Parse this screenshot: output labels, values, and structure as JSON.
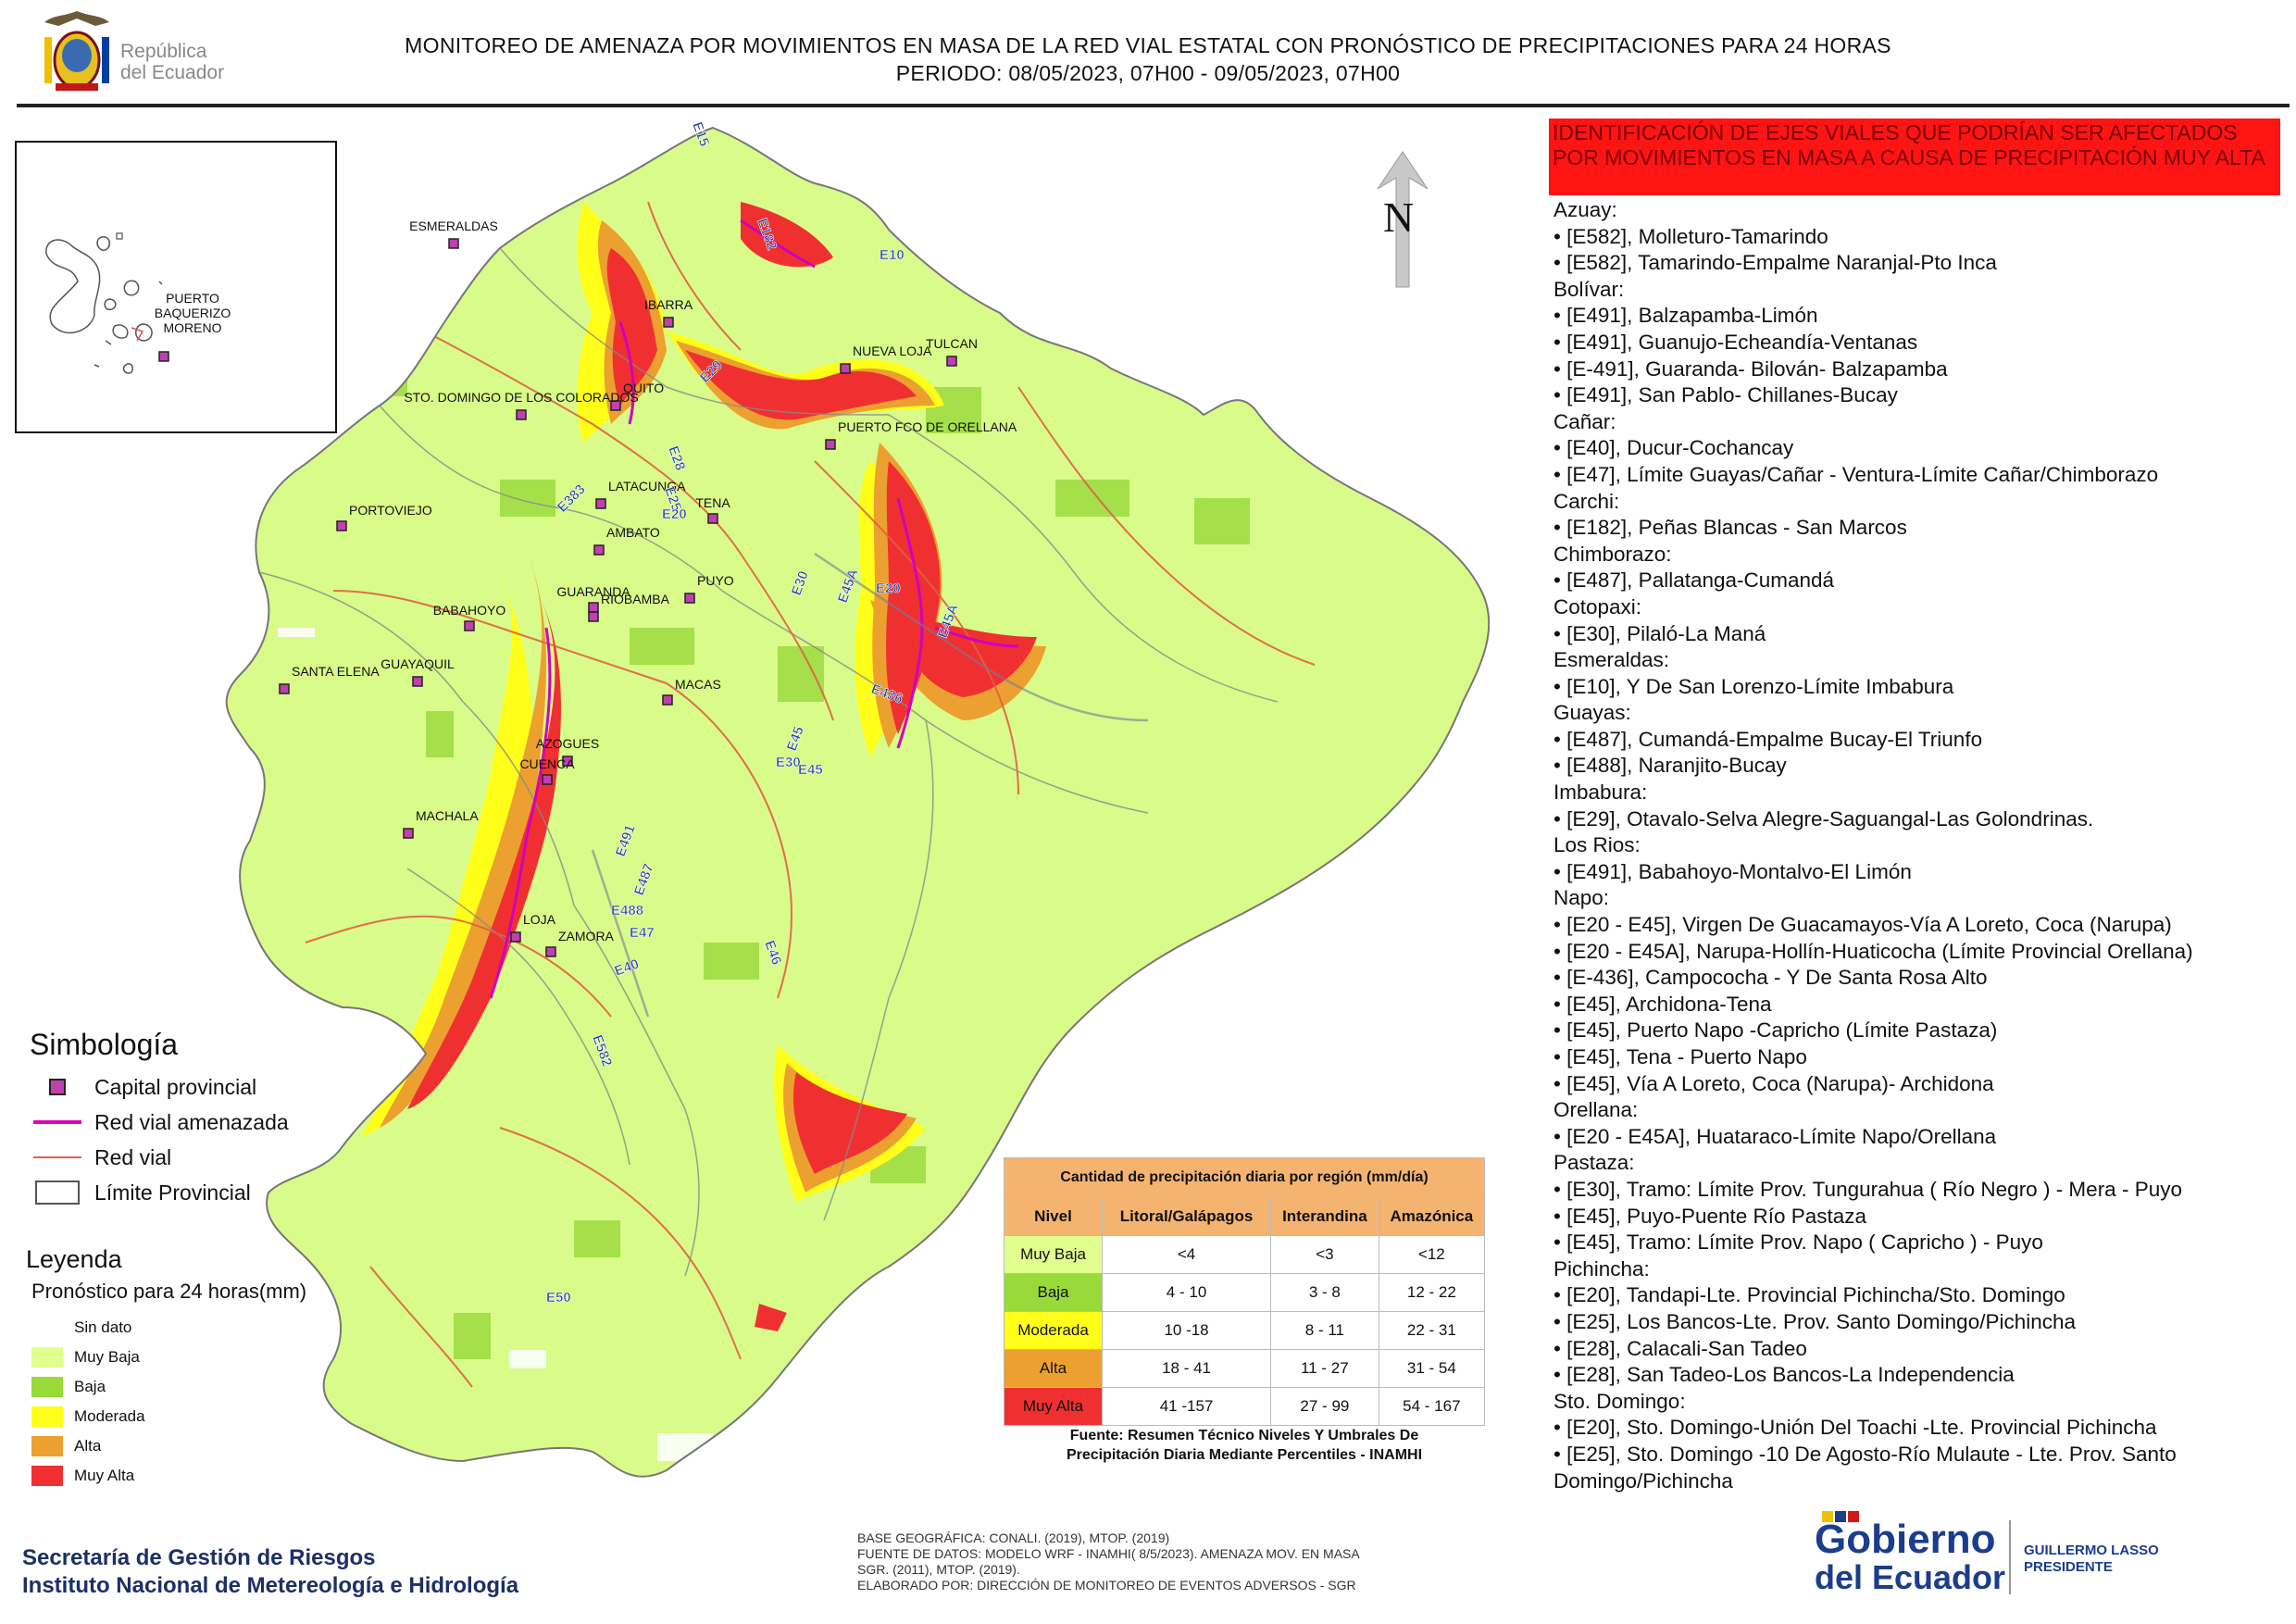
{
  "logo": {
    "text_line1": "República",
    "text_line2": "del Ecuador"
  },
  "title": {
    "line1": "MONITOREO DE AMENAZA POR MOVIMIENTOS EN MASA DE LA RED VIAL  ESTATAL  CON PRONÓSTICO  DE  PRECIPITACIONES PARA 24 HORAS",
    "line2": "PERIODO: 08/05/2023, 07H00 - 09/05/2023, 07H00"
  },
  "north_label": "N",
  "inset": {
    "city": "PUERTO BAQUERIZO MORENO"
  },
  "cities": [
    "ESMERALDAS",
    "TULCAN",
    "IBARRA",
    "NUEVA LOJA",
    "QUITO",
    "STO. DOMINGO DE LOS COLORADOS",
    "PUERTO FCO DE ORELLANA",
    "LATACUNGA",
    "TENA",
    "PORTOVIEJO",
    "AMBATO",
    "PUYO",
    "GUARANDA",
    "RIOBAMBA",
    "BABAHOYO",
    "SANTA ELENA",
    "GUAYAQUIL",
    "MACAS",
    "AZOGUES",
    "CUENCA",
    "MACHALA",
    "LOJA",
    "ZAMORA"
  ],
  "road_labels": [
    "E15",
    "E182",
    "E10",
    "E29",
    "E28",
    "E25",
    "E20",
    "E383",
    "E30",
    "E45A",
    "E20",
    "E45A",
    "E436",
    "E45",
    "E30",
    "E45",
    "E491",
    "E487",
    "E488",
    "E47",
    "E40",
    "E582",
    "E46",
    "E50"
  ],
  "warning_header": "IDENTIFICACIÓN DE EJES VIALES QUE PODRÍAN SER AFECTADOS POR MOVIMIENTOS EN MASA A CAUSA DE PRECIPITACIÓN MUY ALTA",
  "affected": [
    {
      "province": "Azuay:",
      "items": [
        "• [E582], Molleturo-Tamarindo",
        "• [E582], Tamarindo-Empalme Naranjal-Pto Inca"
      ]
    },
    {
      "province": "Bolívar:",
      "items": [
        "• [E491], Balzapamba-Limón",
        "• [E491], Guanujo-Echeandía-Ventanas",
        "• [E-491], Guaranda- Bilován- Balzapamba",
        "• [E491], San Pablo- Chillanes-Bucay"
      ]
    },
    {
      "province": "Cañar:",
      "items": [
        "• [E40], Ducur-Cochancay",
        "• [E47], Límite Guayas/Cañar - Ventura-Límite Cañar/Chimborazo"
      ]
    },
    {
      "province": "Carchi:",
      "items": [
        "• [E182], Peñas Blancas - San Marcos"
      ]
    },
    {
      "province": "Chimborazo:",
      "items": [
        "• [E487], Pallatanga-Cumandá"
      ]
    },
    {
      "province": "Cotopaxi:",
      "items": [
        "• [E30], Pilaló-La Maná"
      ]
    },
    {
      "province": "Esmeraldas:",
      "items": [
        "• [E10], Y De San Lorenzo-Límite Imbabura"
      ]
    },
    {
      "province": "Guayas:",
      "items": [
        "• [E487], Cumandá-Empalme Bucay-El Triunfo",
        "• [E488], Naranjito-Bucay"
      ]
    },
    {
      "province": "Imbabura:",
      "items": [
        "• [E29], Otavalo-Selva Alegre-Saguangal-Las Golondrinas."
      ]
    },
    {
      "province": "Los Rios:",
      "items": [
        "• [E491], Babahoyo-Montalvo-El Limón"
      ]
    },
    {
      "province": "Napo:",
      "items": [
        "• [E20 - E45], Virgen De Guacamayos-Vía A Loreto, Coca (Narupa)",
        "• [E20 - E45A], Narupa-Hollín-Huaticocha (Límite Provincial Orellana)",
        "• [E-436], Campococha - Y De Santa Rosa Alto",
        "• [E45], Archidona-Tena",
        "• [E45], Puerto Napo -Capricho (Límite Pastaza)",
        "• [E45], Tena - Puerto Napo",
        "• [E45], Vía A Loreto, Coca (Narupa)- Archidona"
      ]
    },
    {
      "province": "Orellana:",
      "items": [
        "• [E20 - E45A], Huataraco-Límite Napo/Orellana"
      ]
    },
    {
      "province": "Pastaza:",
      "items": [
        "• [E30], Tramo: Límite Prov. Tungurahua ( Río Negro ) - Mera - Puyo",
        "• [E45], Puyo-Puente Río Pastaza",
        "• [E45], Tramo: Límite Prov. Napo ( Capricho ) - Puyo"
      ]
    },
    {
      "province": "Pichincha:",
      "items": [
        "• [E20], Tandapi-Lte. Provincial Pichincha/Sto. Domingo",
        "• [E25], Los Bancos-Lte. Prov. Santo Domingo/Pichincha",
        "• [E28], Calacali-San Tadeo",
        "• [E28], San Tadeo-Los Bancos-La Independencia"
      ]
    },
    {
      "province": "Sto. Domingo:",
      "items": [
        "• [E20], Sto. Domingo-Unión Del Toachi -Lte. Provincial Pichincha",
        "• [E25], Sto. Domingo -10 De Agosto-Río Mulaute - Lte. Prov. Santo",
        "Domingo/Pichincha"
      ]
    }
  ],
  "symbology": {
    "title": "Simbología",
    "items": [
      {
        "key": "capital",
        "label": "Capital provincial"
      },
      {
        "key": "threatened",
        "label": "Red vial amenazada"
      },
      {
        "key": "road",
        "label": "Red vial"
      },
      {
        "key": "limit",
        "label": "Límite Provincial"
      }
    ]
  },
  "legend": {
    "title": "Leyenda",
    "subtitle": "Pronóstico para 24 horas(mm)",
    "items": [
      {
        "label": "Sin dato",
        "color": "#ffffff"
      },
      {
        "label": " Muy Baja",
        "color": "#e0ff8e"
      },
      {
        "label": "Baja",
        "color": "#99d93a"
      },
      {
        "label": "Moderada",
        "color": "#ffff1a"
      },
      {
        "label": "Alta",
        "color": "#eca030"
      },
      {
        "label": "Muy Alta",
        "color": "#f03030"
      }
    ]
  },
  "precip_table": {
    "title": "Cantidad de precipitación diaria por región (mm/día)",
    "headers": [
      "Nivel",
      "Litoral/Galápagos",
      "Interandina",
      "Amazónica"
    ],
    "rows": [
      {
        "level": "Muy Baja",
        "color": "#e0ff8e",
        "values": [
          "<4",
          "<3",
          "<12"
        ]
      },
      {
        "level": "Baja",
        "color": "#99d93a",
        "values": [
          "4 - 10",
          "3 - 8",
          "12 - 22"
        ]
      },
      {
        "level": "Moderada",
        "color": "#ffff1a",
        "values": [
          "10 -18",
          "8 - 11",
          "22 - 31"
        ]
      },
      {
        "level": "Alta",
        "color": "#eca030",
        "values": [
          "18 - 41",
          "11 - 27",
          "31 - 54"
        ]
      },
      {
        "level": "Muy Alta",
        "color": "#f03030",
        "values": [
          "41 -157",
          "27 - 99",
          "54 - 167"
        ]
      }
    ],
    "source_line1": "Fuente: Resumen Técnico Niveles Y Umbrales De",
    "source_line2": "Precipitación Diaria Mediante Percentiles - INAMHI"
  },
  "organization": {
    "line1": "Secretaría de Gestión de Riesgos",
    "line2": "Instituto Nacional de Metereología e Hidrología"
  },
  "credits": {
    "line1": "BASE GEOGRÁFICA: CONALI. (2019), MTOP. (2019)",
    "line2": "FUENTE DE DATOS: MODELO WRF - INAMHI( 8/5/2023).  AMENAZA MOV. EN MASA",
    "line3": "SGR. (2011), MTOP. (2019).",
    "line4": "ELABORADO POR: DIRECCIÓN DE MONITOREO DE EVENTOS ADVERSOS - SGR"
  },
  "gov_logo": {
    "line1": "Gobierno",
    "line2": "del Ecuador",
    "name": "GUILLERMO LASSO",
    "role": "PRESIDENTE"
  }
}
